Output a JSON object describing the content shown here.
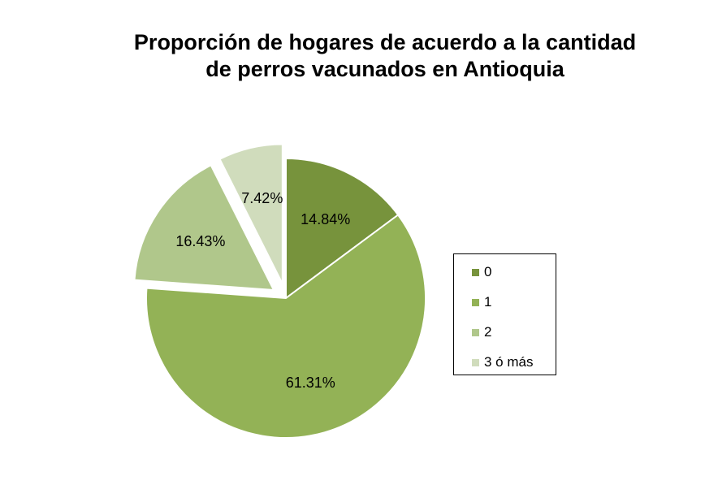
{
  "chart_data": {
    "type": "pie",
    "title_lines": [
      "Proporción de hogares de acuerdo a la cantidad",
      "de perros vacunados en Antioquia"
    ],
    "categories": [
      "0",
      "1",
      "2",
      "3 ó más"
    ],
    "values": [
      14.84,
      61.31,
      16.43,
      7.42
    ],
    "data_labels": [
      "14.84%",
      "61.31%",
      "16.43%",
      "7.42%"
    ],
    "colors": [
      "#77933c",
      "#93b256",
      "#b0c78b",
      "#d0dcbc"
    ],
    "exploded": [
      false,
      false,
      true,
      true
    ],
    "legend_position": "right",
    "start_angle": "12 o'clock",
    "direction": "clockwise"
  }
}
